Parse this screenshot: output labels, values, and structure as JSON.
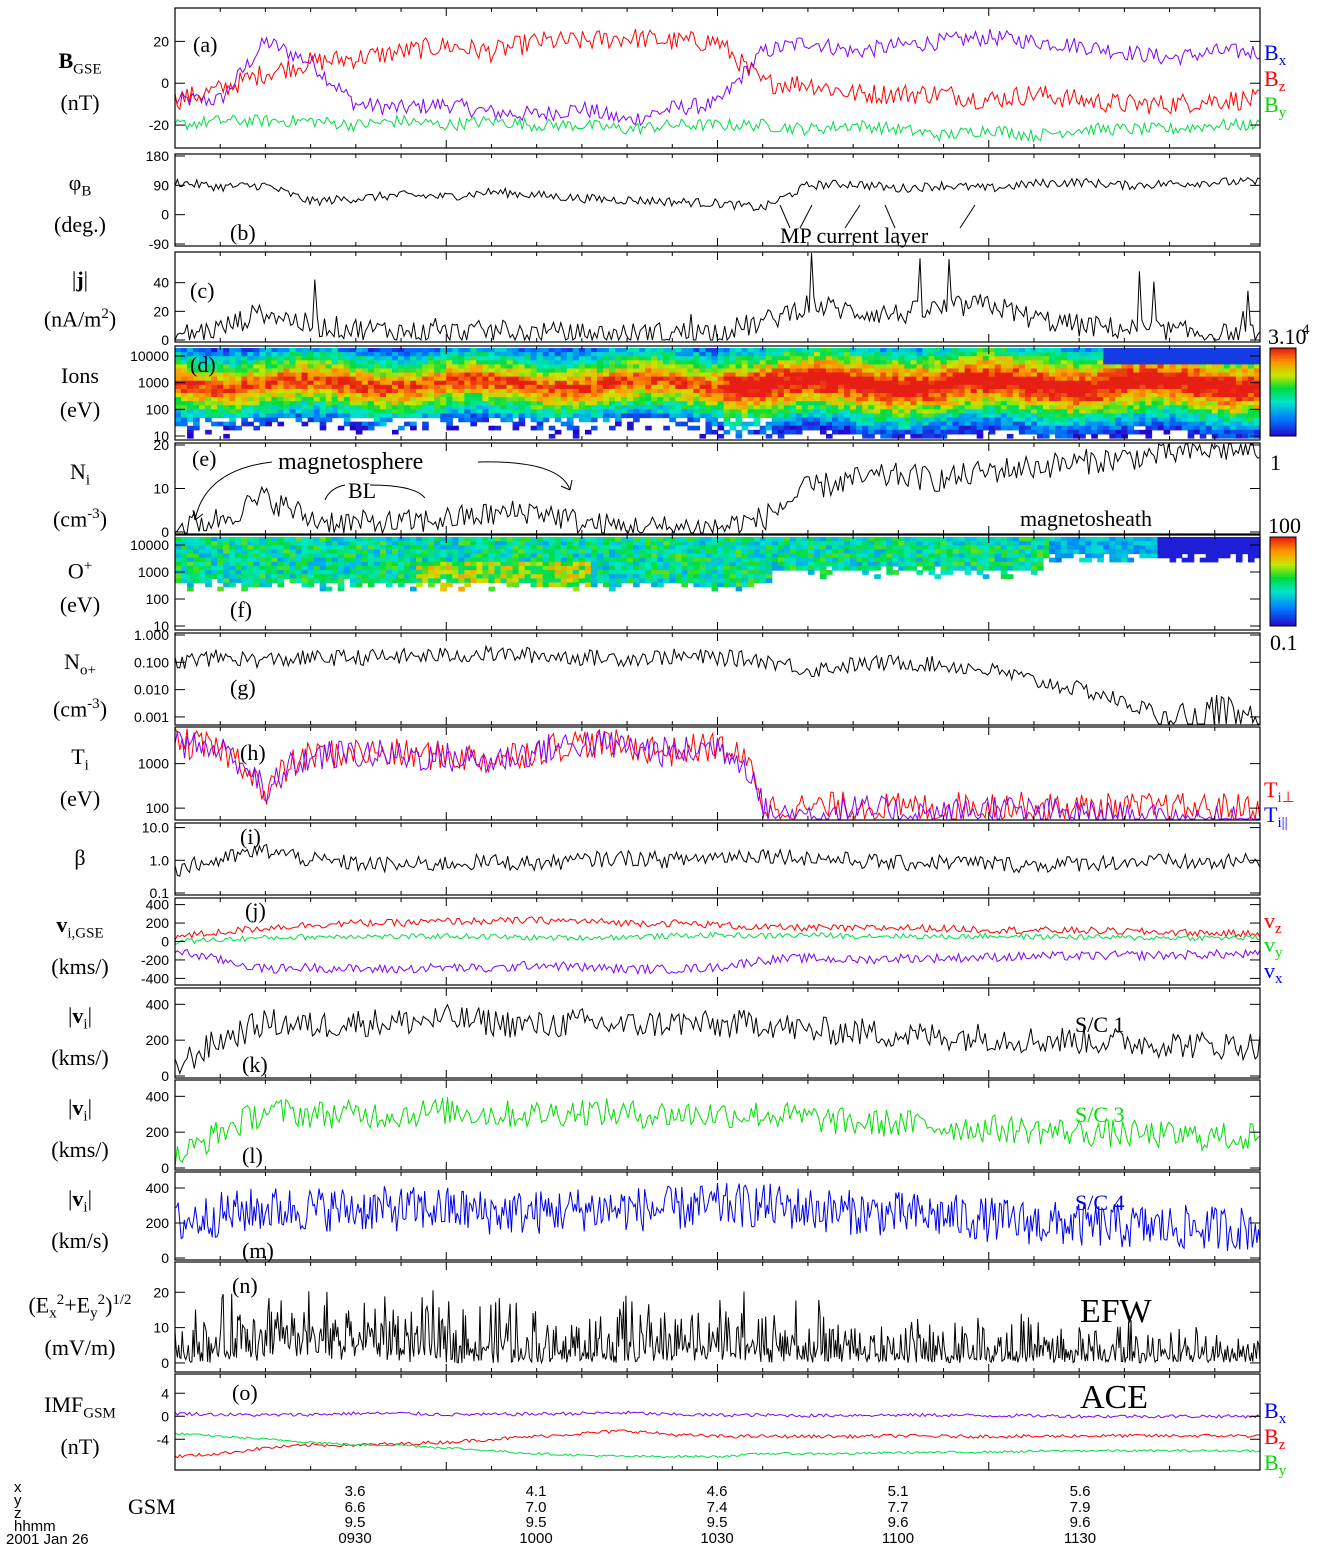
{
  "chart_data": [
    {
      "type": "line",
      "panel": "a",
      "panel_label": "(a)",
      "ylabel_main": "B",
      "ylabel_sub": "GSE",
      "ylabel_unit": "(nT)",
      "ylim": [
        -30,
        35
      ],
      "yticks": [
        20,
        0,
        -20
      ],
      "series": [
        {
          "name": "Bx",
          "color": "#8000ff",
          "base": [
            -8,
            -8,
            20,
            10,
            -10,
            -12,
            -10,
            -14,
            -15,
            -12,
            -18,
            -12,
            -10,
            15,
            20,
            15,
            18,
            20,
            22,
            20,
            18,
            15,
            12,
            15,
            15
          ],
          "amp": 4
        },
        {
          "name": "Bz",
          "color": "#ff0000",
          "base": [
            -8,
            -3,
            5,
            10,
            12,
            15,
            18,
            15,
            20,
            20,
            22,
            20,
            20,
            0,
            0,
            -5,
            -5,
            -5,
            -8,
            -5,
            -8,
            -10,
            -10,
            -8,
            -8
          ],
          "amp": 5
        },
        {
          "name": "By",
          "color": "#00dd44",
          "base": [
            -20,
            -18,
            -18,
            -18,
            -20,
            -18,
            -20,
            -18,
            -20,
            -20,
            -22,
            -20,
            -20,
            -20,
            -22,
            -20,
            -22,
            -25,
            -22,
            -25,
            -22,
            -22,
            -22,
            -20,
            -20
          ],
          "amp": 3
        }
      ]
    },
    {
      "type": "line",
      "panel": "b",
      "panel_label": "(b)",
      "ylabel_main": "φ",
      "ylabel_sub": "B",
      "ylabel_unit": "(deg.)",
      "ylim": [
        -90,
        180
      ],
      "yticks": [
        180,
        90,
        0,
        -90
      ],
      "series": [
        {
          "name": "phiB",
          "color": "#000000",
          "base": [
            100,
            85,
            90,
            40,
            50,
            60,
            55,
            70,
            60,
            50,
            45,
            40,
            35,
            20,
            90,
            95,
            80,
            90,
            80,
            95,
            100,
            90,
            95,
            100,
            100
          ],
          "amp": 14
        }
      ],
      "annotation": "MP current layer"
    },
    {
      "type": "line",
      "panel": "c",
      "panel_label": "(c)",
      "ylabel_main": "|j|",
      "ylabel_unit": "(nA/m",
      "ylabel_unit_sup": "2",
      "ylabel_unit_end": ")",
      "ylim": [
        0,
        60
      ],
      "yticks": [
        40,
        20,
        0
      ],
      "series": [
        {
          "name": "|j|",
          "color": "#000000",
          "base": [
            3,
            8,
            20,
            10,
            8,
            6,
            5,
            6,
            5,
            4,
            4,
            5,
            6,
            12,
            25,
            20,
            18,
            22,
            25,
            15,
            10,
            8,
            6,
            4,
            3
          ],
          "amp": 8
        }
      ]
    },
    {
      "type": "heatmap",
      "panel": "d",
      "panel_label": "(d)",
      "ylabel_main": "Ions",
      "ylabel_unit": "(eV)",
      "yticks": [
        "10000",
        "1000",
        "100",
        "10"
      ],
      "colorbar": {
        "max": "3.10",
        "max_sup": "4",
        "min": "1"
      }
    },
    {
      "type": "line",
      "panel": "e",
      "panel_label": "(e)",
      "ylabel_main": "N",
      "ylabel_sub": "i",
      "ylabel_unit": "(cm",
      "ylabel_unit_sup": "-3",
      "ylabel_unit_end": ")",
      "ylim": [
        0,
        20
      ],
      "yticks": [
        20,
        10,
        0
      ],
      "series": [
        {
          "name": "Ni",
          "color": "#000000",
          "base": [
            1,
            3,
            8,
            3,
            2,
            2,
            3,
            4,
            5,
            2,
            1,
            1,
            1,
            3,
            10,
            12,
            13,
            12,
            14,
            15,
            16,
            17,
            18,
            19,
            19
          ],
          "amp": 3
        }
      ],
      "annotations": [
        "magnetosphere",
        "BL",
        "magnetosheath"
      ]
    },
    {
      "type": "heatmap",
      "panel": "f",
      "panel_label": "(f)",
      "ylabel_main": "O",
      "ylabel_sup": "+",
      "ylabel_unit": "(eV)",
      "yticks": [
        "10000",
        "1000",
        "100",
        "10"
      ],
      "colorbar": {
        "max": "100",
        "min": "0.1"
      }
    },
    {
      "type": "line",
      "panel": "g",
      "panel_label": "(g)",
      "ylabel_main": "N",
      "ylabel_sub": "o+",
      "ylabel_unit": "(cm",
      "ylabel_unit_sup": "-3",
      "ylabel_unit_end": ")",
      "log": true,
      "ylim": [
        0.0006,
        1
      ],
      "yticks": [
        "1.000",
        "0.100",
        "0.010",
        "0.001"
      ],
      "series": [
        {
          "name": "No+",
          "color": "#000000",
          "base": [
            0.1,
            0.15,
            0.12,
            0.14,
            0.15,
            0.16,
            0.18,
            0.2,
            0.18,
            0.15,
            0.14,
            0.16,
            0.15,
            0.12,
            0.05,
            0.08,
            0.1,
            0.08,
            0.05,
            0.02,
            0.01,
            0.003,
            0.0008,
            0.004,
            0.0007
          ],
          "amp": 0.3
        }
      ]
    },
    {
      "type": "line",
      "panel": "h",
      "panel_label": "(h)",
      "ylabel_main": "T",
      "ylabel_sub": "i",
      "ylabel_unit": "(eV)",
      "log": true,
      "ylim": [
        60,
        6000
      ],
      "yticks": [
        "1000",
        "100"
      ],
      "series": [
        {
          "name": "Ti⊥",
          "color": "#ff0000",
          "base": [
            3000,
            2000,
            100,
            1500,
            1800,
            1600,
            1500,
            1200,
            2000,
            3000,
            2500,
            1800,
            2500,
            100,
            100,
            110,
            100,
            100,
            120,
            100,
            100,
            100,
            100,
            100,
            100
          ],
          "amp": 0.35
        },
        {
          "name": "Ti||",
          "color": "#8000ff",
          "base": [
            3000,
            2000,
            90,
            1400,
            1700,
            1500,
            1400,
            1100,
            1900,
            2900,
            2400,
            1700,
            2400,
            80,
            70,
            90,
            80,
            70,
            100,
            80,
            70,
            60,
            50,
            50,
            50
          ],
          "amp": 0.35
        }
      ]
    },
    {
      "type": "line",
      "panel": "i",
      "panel_label": "(i)",
      "ylabel_main": "β",
      "log": true,
      "ylim": [
        0.1,
        12
      ],
      "yticks": [
        "10.0",
        "1.0",
        "0.1"
      ],
      "series": [
        {
          "name": "beta",
          "color": "#000000",
          "base": [
            0.5,
            1,
            2,
            1,
            0.8,
            0.7,
            0.8,
            0.9,
            0.8,
            1,
            1.2,
            1,
            1.3,
            1.5,
            1.2,
            1,
            0.8,
            0.9,
            0.8,
            0.7,
            0.8,
            0.9,
            0.9,
            0.8,
            1
          ],
          "amp": 0.25
        }
      ]
    },
    {
      "type": "line",
      "panel": "j",
      "panel_label": "(j)",
      "ylabel_main": "v",
      "ylabel_sub": "i,GSE",
      "ylabel_unit": "(kms/)",
      "ylim": [
        -450,
        450
      ],
      "yticks": [
        400,
        200,
        0,
        -200,
        -400
      ],
      "series": [
        {
          "name": "vz",
          "color": "#ff0000",
          "base": [
            50,
            100,
            150,
            180,
            200,
            200,
            220,
            220,
            230,
            220,
            200,
            200,
            180,
            150,
            150,
            140,
            150,
            140,
            130,
            120,
            120,
            110,
            100,
            90,
            80
          ],
          "amp": 40
        },
        {
          "name": "vy",
          "color": "#00dd44",
          "base": [
            0,
            20,
            40,
            50,
            60,
            50,
            60,
            50,
            40,
            40,
            50,
            60,
            70,
            60,
            70,
            60,
            60,
            50,
            60,
            50,
            50,
            40,
            40,
            40,
            40
          ],
          "amp": 30
        },
        {
          "name": "vx",
          "color": "#8000ff",
          "base": [
            -100,
            -200,
            -300,
            -280,
            -300,
            -300,
            -280,
            -300,
            -250,
            -280,
            -300,
            -300,
            -280,
            -200,
            -180,
            -200,
            -180,
            -180,
            -170,
            -160,
            -160,
            -150,
            -150,
            -140,
            -140
          ],
          "amp": 50
        }
      ]
    },
    {
      "type": "line",
      "panel": "k",
      "panel_label": "(k)",
      "ylabel_main": "|v",
      "ylabel_sub": "i",
      "ylabel_end": "|",
      "ylabel_unit": "(kms/)",
      "ylim": [
        0,
        480
      ],
      "yticks": [
        400,
        200,
        0
      ],
      "spacecraft": "S/C 1",
      "series": [
        {
          "name": "S/C 1",
          "color": "#000000",
          "base": [
            50,
            200,
            300,
            280,
            300,
            300,
            320,
            300,
            280,
            300,
            280,
            300,
            280,
            300,
            250,
            250,
            230,
            220,
            220,
            200,
            200,
            190,
            180,
            170,
            170
          ],
          "amp": 80
        }
      ]
    },
    {
      "type": "line",
      "panel": "l",
      "panel_label": "(l)",
      "ylabel_main": "|v",
      "ylabel_sub": "i",
      "ylabel_end": "|",
      "ylabel_unit": "(kms/)",
      "ylim": [
        0,
        480
      ],
      "yticks": [
        400,
        200,
        0
      ],
      "spacecraft": "S/C 3",
      "series": [
        {
          "name": "S/C 3",
          "color": "#00dd00",
          "base": [
            50,
            200,
            320,
            300,
            300,
            300,
            320,
            300,
            300,
            320,
            300,
            300,
            300,
            300,
            280,
            250,
            250,
            230,
            220,
            210,
            200,
            190,
            180,
            175,
            175
          ],
          "amp": 80
        }
      ]
    },
    {
      "type": "line",
      "panel": "m",
      "panel_label": "(m)",
      "ylabel_main": "|v",
      "ylabel_sub": "i",
      "ylabel_end": "|",
      "ylabel_unit": "(km/s)",
      "ylim": [
        0,
        480
      ],
      "yticks": [
        400,
        200,
        0
      ],
      "spacecraft": "S/C 4",
      "series": [
        {
          "name": "S/C 4",
          "color": "#0000ee",
          "base": [
            200,
            250,
            280,
            280,
            280,
            280,
            280,
            260,
            260,
            280,
            280,
            280,
            300,
            300,
            280,
            260,
            250,
            240,
            220,
            200,
            190,
            180,
            175,
            170,
            170
          ],
          "amp": 130
        }
      ]
    },
    {
      "type": "line",
      "panel": "n",
      "panel_label": "(n)",
      "ylabel_html": "(E<sub>x</sub><sup>2</sup>+E<sub>y</sub><sup>2</sup>)<sup>1/2</sup>",
      "ylabel_unit": "(mV/m)",
      "ylim": [
        -2,
        28
      ],
      "yticks": [
        20,
        10,
        0
      ],
      "instrument": "EFW",
      "series": [
        {
          "name": "E",
          "color": "#000000",
          "base": [
            5,
            6,
            8,
            7,
            8,
            7,
            6,
            6,
            5,
            5,
            6,
            6,
            7,
            6,
            5,
            4,
            4,
            4,
            3,
            3,
            2,
            2,
            1,
            1,
            1
          ],
          "amp": 6
        }
      ]
    },
    {
      "type": "line",
      "panel": "o",
      "panel_label": "(o)",
      "ylabel_main": "IMF",
      "ylabel_sub": "GSM",
      "ylabel_unit": "(nT)",
      "ylim": [
        -9,
        7
      ],
      "yticks": [
        4,
        0,
        -4
      ],
      "instrument": "ACE",
      "series": [
        {
          "name": "Bx",
          "color": "#8000ff",
          "base": [
            0.5,
            0.3,
            0.2,
            0.3,
            0.5,
            0.5,
            0.3,
            0.3,
            0.4,
            0.5,
            0.6,
            0.3,
            0.2,
            0.2,
            0.1,
            0.2,
            0.2,
            0.2,
            0.1,
            0.1,
            0,
            0,
            0,
            0,
            0
          ],
          "amp": 0.3
        },
        {
          "name": "Bz",
          "color": "#ff0000",
          "base": [
            -7,
            -6.5,
            -5.5,
            -5,
            -5,
            -4.8,
            -4.5,
            -4,
            -3.5,
            -3,
            -2.5,
            -3.2,
            -3.5,
            -3.5,
            -3.5,
            -3.5,
            -3.4,
            -3.5,
            -3.5,
            -3.5,
            -3.4,
            -3.4,
            -3.4,
            -3.4,
            -3.4
          ],
          "amp": 0.3
        },
        {
          "name": "By",
          "color": "#00dd44",
          "base": [
            -3,
            -3.5,
            -4,
            -4.5,
            -5,
            -5,
            -5.5,
            -6,
            -6.5,
            -6.8,
            -7,
            -7,
            -7,
            -6.5,
            -6.5,
            -6.5,
            -6.3,
            -6.3,
            -6.2,
            -6.1,
            -6,
            -6,
            -6,
            -6,
            -6
          ],
          "amp": 0.2
        }
      ]
    }
  ],
  "legend_labels": {
    "a": [
      {
        "b": "B",
        "s": "x",
        "color": "#0000ff"
      },
      {
        "b": "B",
        "s": "z",
        "color": "#ff0000"
      },
      {
        "b": "B",
        "s": "y",
        "color": "#00dd00"
      }
    ],
    "h": [
      {
        "b": "T",
        "s": "i⊥",
        "color": "#ff0000"
      },
      {
        "b": "T",
        "s": "i||",
        "color": "#0000ff"
      }
    ],
    "j": [
      {
        "b": "v",
        "s": "z",
        "color": "#ff0000"
      },
      {
        "b": "v",
        "s": "y",
        "color": "#00dd00"
      },
      {
        "b": "v",
        "s": "x",
        "color": "#0000ff"
      }
    ],
    "o": [
      {
        "b": "B",
        "s": "x",
        "color": "#0000ff"
      },
      {
        "b": "B",
        "s": "z",
        "color": "#ff0000"
      },
      {
        "b": "B",
        "s": "y",
        "color": "#00dd00"
      }
    ]
  },
  "x_axis": {
    "row_labels": [
      "x",
      "y",
      "z",
      "hhmm",
      "2001 Jan 26"
    ],
    "frame_label": "GSM",
    "ticks": [
      {
        "x": "3.6",
        "y": "6.6",
        "z": "9.5",
        "t": "0930"
      },
      {
        "x": "4.1",
        "y": "7.0",
        "z": "9.5",
        "t": "1000"
      },
      {
        "x": "4.6",
        "y": "7.4",
        "z": "9.5",
        "t": "1030"
      },
      {
        "x": "5.1",
        "y": "7.7",
        "z": "9.6",
        "t": "1100"
      },
      {
        "x": "5.6",
        "y": "7.9",
        "z": "9.6",
        "t": "1130"
      }
    ]
  }
}
